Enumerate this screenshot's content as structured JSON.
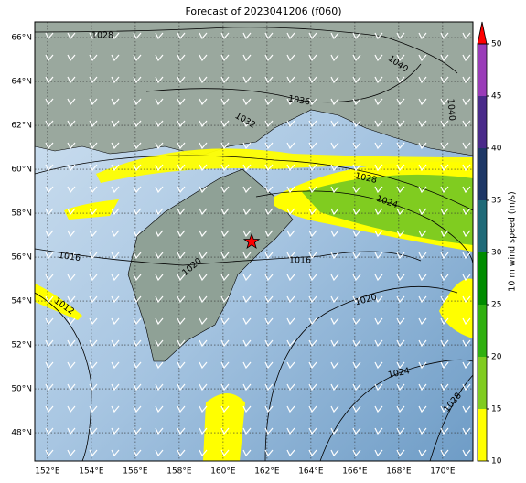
{
  "chart_data": {
    "type": "map",
    "title": "Forecast of 2023041206 (f060)",
    "xlim": [
      151.42,
      171.38
    ],
    "ylim": [
      46.71,
      66.71
    ],
    "xticks": [
      {
        "value": 152,
        "label": "152°E"
      },
      {
        "value": 154,
        "label": "154°E"
      },
      {
        "value": 156,
        "label": "156°E"
      },
      {
        "value": 158,
        "label": "158°E"
      },
      {
        "value": 160,
        "label": "160°E"
      },
      {
        "value": 162,
        "label": "162°E"
      },
      {
        "value": 164,
        "label": "164°E"
      },
      {
        "value": 166,
        "label": "166°E"
      },
      {
        "value": 168,
        "label": "168°E"
      },
      {
        "value": 170,
        "label": "170°E"
      }
    ],
    "yticks": [
      {
        "value": 66,
        "label": "66°N"
      },
      {
        "value": 64,
        "label": "64°N"
      },
      {
        "value": 62,
        "label": "62°N"
      },
      {
        "value": 60,
        "label": "60°N"
      },
      {
        "value": 58,
        "label": "58°N"
      },
      {
        "value": 56,
        "label": "56°N"
      },
      {
        "value": 54,
        "label": "54°N"
      },
      {
        "value": 52,
        "label": "52°N"
      },
      {
        "value": 50,
        "label": "50°N"
      },
      {
        "value": 48,
        "label": "48°N"
      }
    ],
    "grid": true,
    "isobar_labels": [
      1028,
      1040,
      1036,
      1032,
      1040,
      1028,
      1024,
      1016,
      1016,
      1020,
      1012,
      1020,
      1024,
      1028
    ],
    "marker": {
      "lon": 161.3,
      "lat": 56.7,
      "color": "#ff0000"
    },
    "colorbar": {
      "label": "10 m wind speed (m/s)",
      "ticks": [
        10,
        15,
        20,
        25,
        30,
        35,
        40,
        45,
        50
      ],
      "colors": [
        "#ffff00",
        "#80cc20",
        "#30b010",
        "#008c00",
        "#1f6a78",
        "#1e3766",
        "#4a2a8a",
        "#9a3cb8"
      ],
      "extend_color": "#ff0000"
    }
  }
}
